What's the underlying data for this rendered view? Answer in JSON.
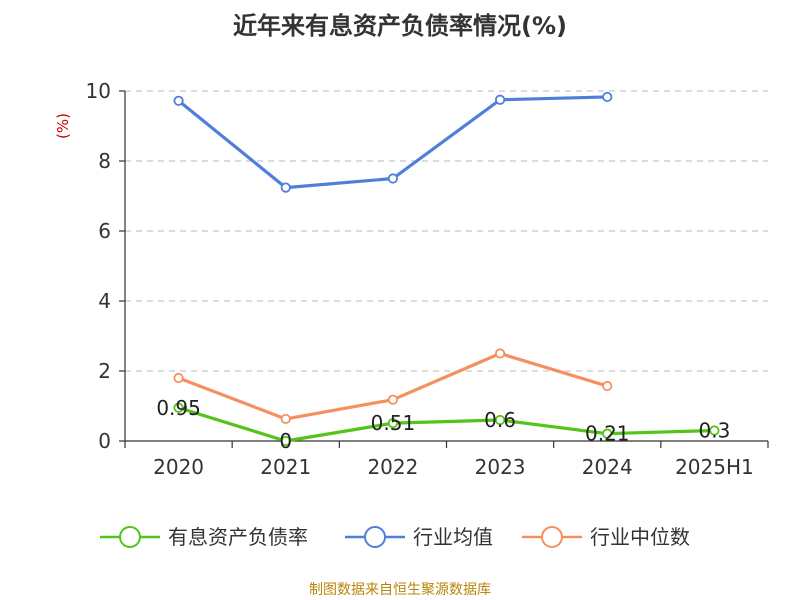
{
  "chart_data": {
    "type": "line",
    "title": "近年来有息资产负债率情况(%)",
    "ylabel": "(%)",
    "xlabel": "",
    "ylim": [
      0,
      10
    ],
    "yticks": [
      0,
      2,
      4,
      6,
      8,
      10
    ],
    "grid": true,
    "legend_position": "bottom",
    "categories": [
      "2020",
      "2021",
      "2022",
      "2023",
      "2024",
      "2025H1"
    ],
    "series": [
      {
        "name": "有息资产负债率",
        "color": "#52c41a",
        "values": [
          0.95,
          0,
          0.51,
          0.6,
          0.21,
          0.3
        ],
        "labels": [
          "0.95",
          "0",
          "0.51",
          "0.6",
          "0.21",
          "0.3"
        ]
      },
      {
        "name": "行业均值",
        "color": "#4f7fdb",
        "values": [
          9.72,
          7.24,
          7.5,
          9.75,
          9.83,
          null
        ]
      },
      {
        "name": "行业中位数",
        "color": "#f5905e",
        "values": [
          1.8,
          0.63,
          1.18,
          2.5,
          1.57,
          null
        ]
      }
    ],
    "ylabel_color": "#cc0000"
  },
  "source": {
    "text": "制图数据来自恒生聚源数据库",
    "color": "#b8860b"
  }
}
